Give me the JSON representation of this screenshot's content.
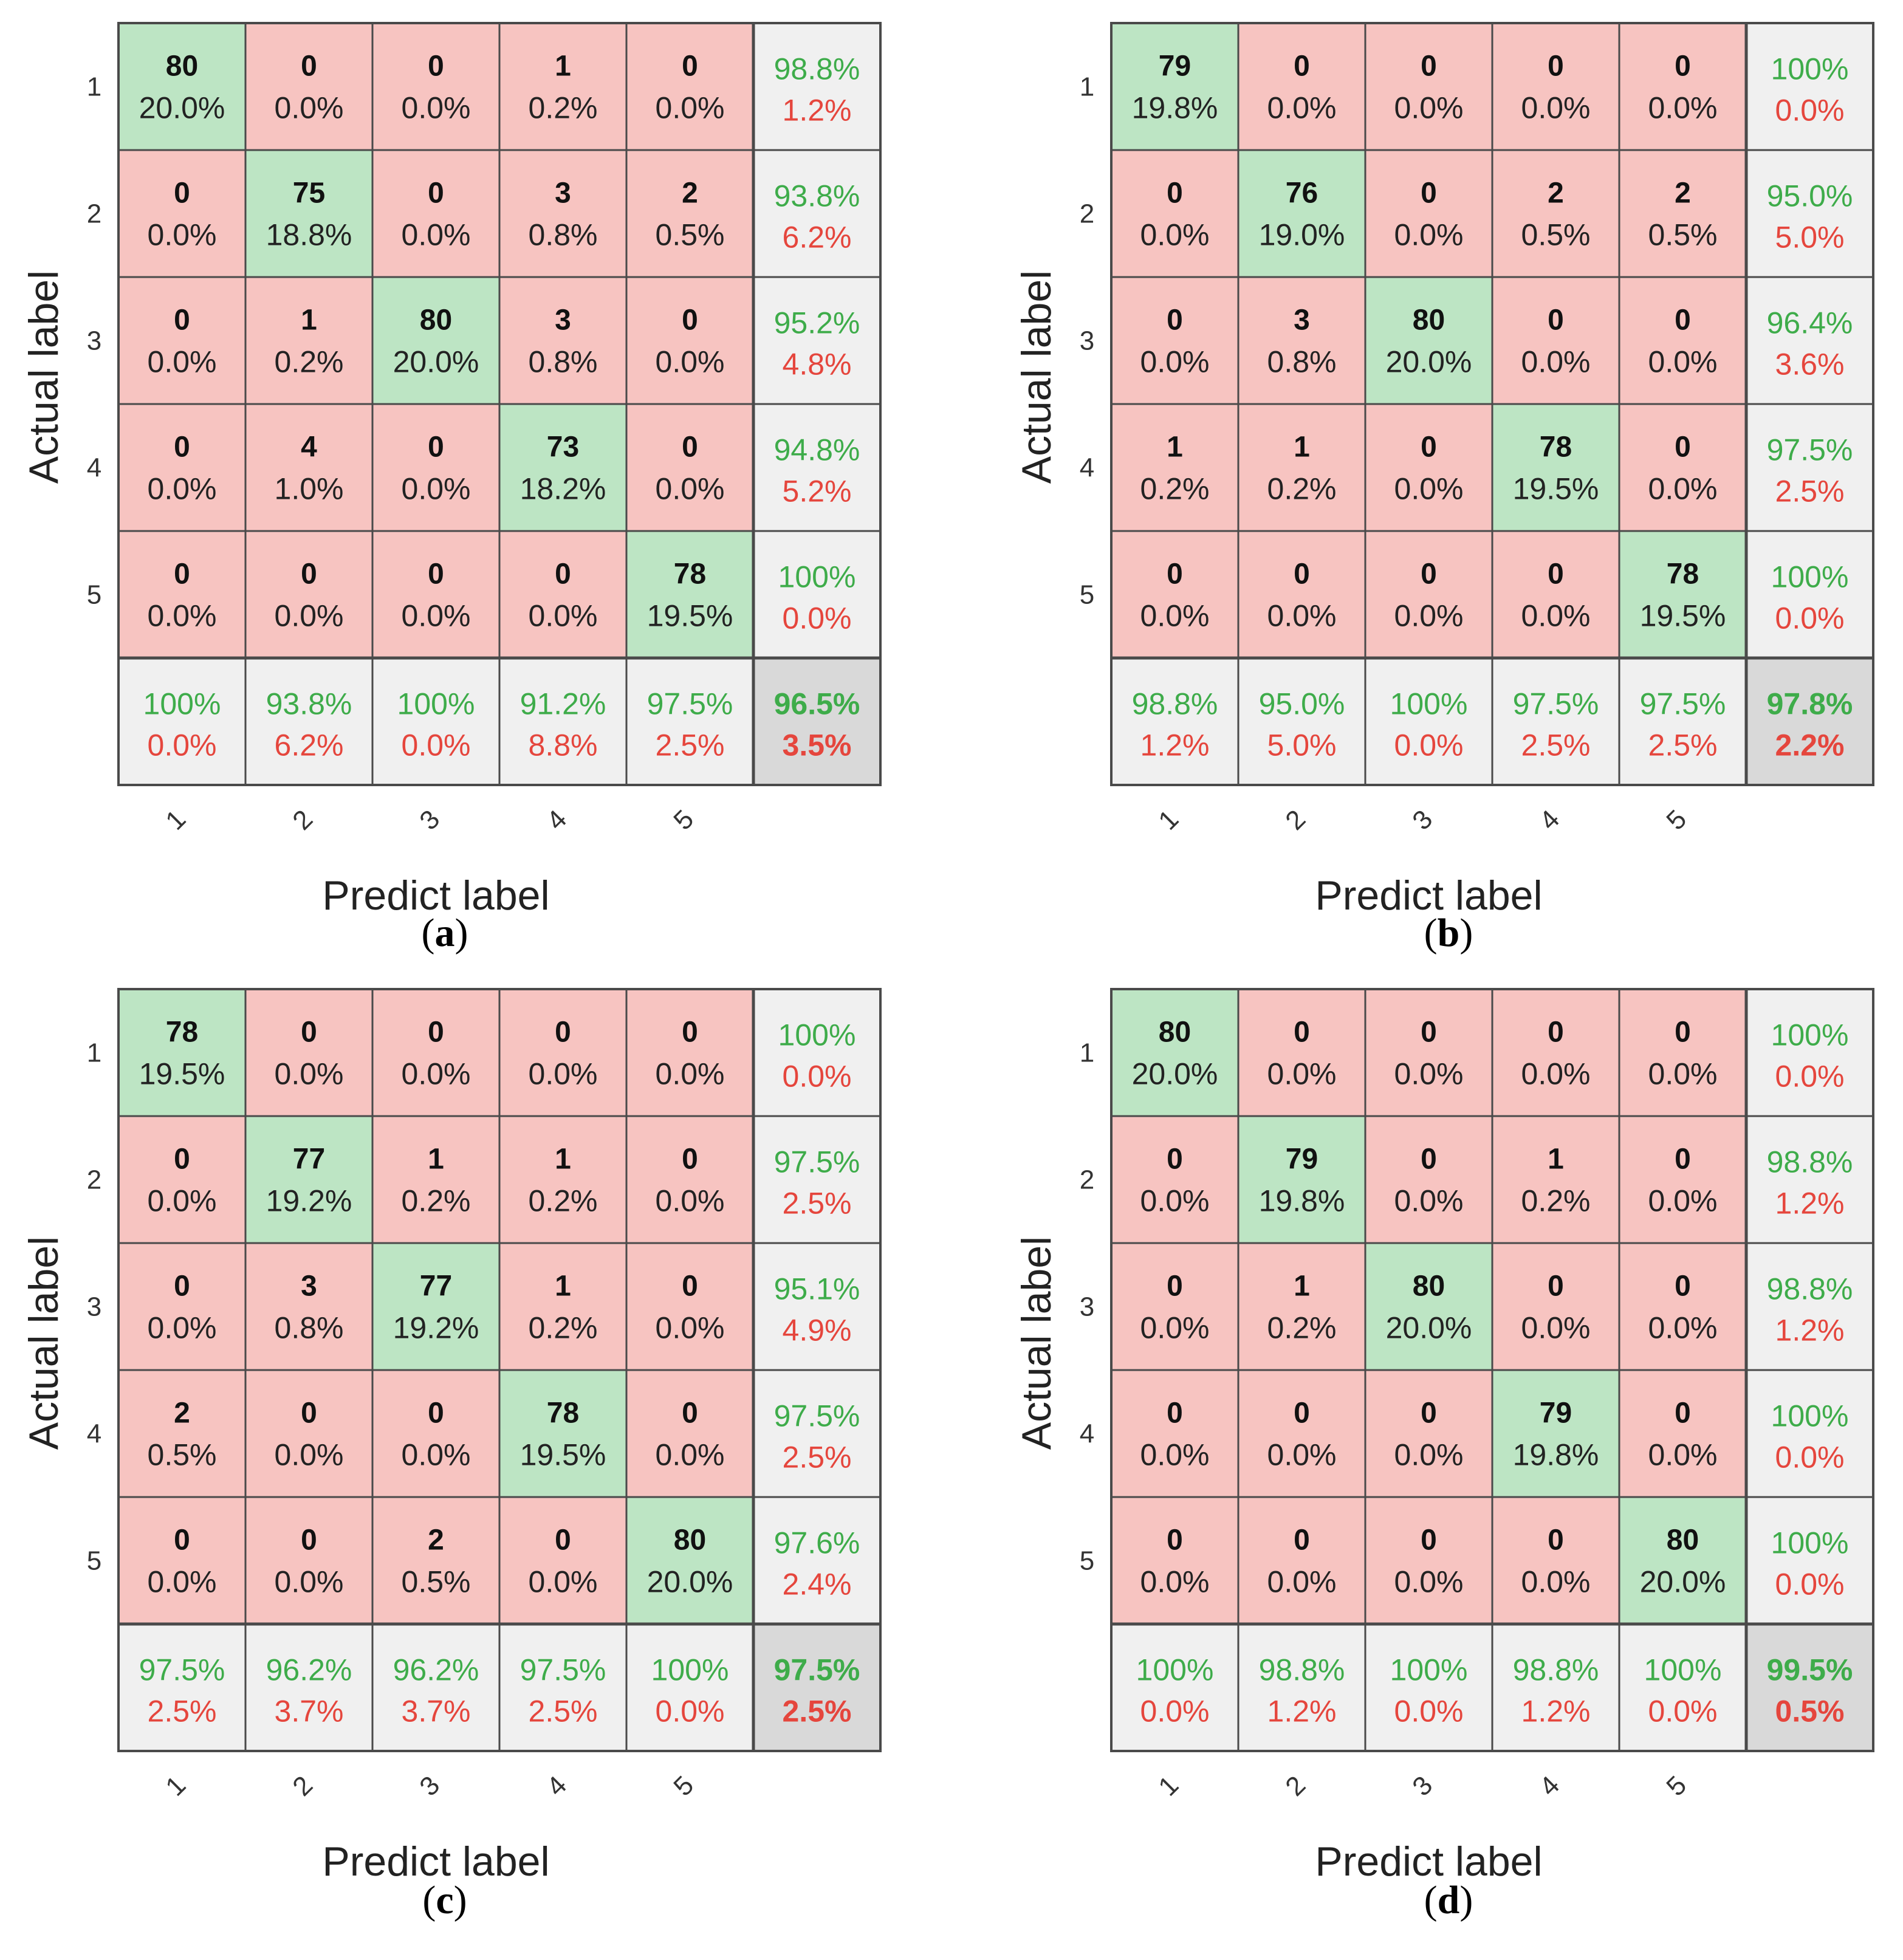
{
  "chart_data": [
    {
      "type": "confusion_matrix",
      "panel": "a",
      "classes": [
        "1",
        "2",
        "3",
        "4",
        "5"
      ],
      "xlabel": "Predict label",
      "ylabel": "Actual label",
      "matrix": [
        [
          {
            "count": "80",
            "pct": "20.0%"
          },
          {
            "count": "0",
            "pct": "0.0%"
          },
          {
            "count": "0",
            "pct": "0.0%"
          },
          {
            "count": "1",
            "pct": "0.2%"
          },
          {
            "count": "0",
            "pct": "0.0%"
          }
        ],
        [
          {
            "count": "0",
            "pct": "0.0%"
          },
          {
            "count": "75",
            "pct": "18.8%"
          },
          {
            "count": "0",
            "pct": "0.0%"
          },
          {
            "count": "3",
            "pct": "0.8%"
          },
          {
            "count": "2",
            "pct": "0.5%"
          }
        ],
        [
          {
            "count": "0",
            "pct": "0.0%"
          },
          {
            "count": "1",
            "pct": "0.2%"
          },
          {
            "count": "80",
            "pct": "20.0%"
          },
          {
            "count": "3",
            "pct": "0.8%"
          },
          {
            "count": "0",
            "pct": "0.0%"
          }
        ],
        [
          {
            "count": "0",
            "pct": "0.0%"
          },
          {
            "count": "4",
            "pct": "1.0%"
          },
          {
            "count": "0",
            "pct": "0.0%"
          },
          {
            "count": "73",
            "pct": "18.2%"
          },
          {
            "count": "0",
            "pct": "0.0%"
          }
        ],
        [
          {
            "count": "0",
            "pct": "0.0%"
          },
          {
            "count": "0",
            "pct": "0.0%"
          },
          {
            "count": "0",
            "pct": "0.0%"
          },
          {
            "count": "0",
            "pct": "0.0%"
          },
          {
            "count": "78",
            "pct": "19.5%"
          }
        ]
      ],
      "row_summary": [
        {
          "correct": "98.8%",
          "error": "1.2%"
        },
        {
          "correct": "93.8%",
          "error": "6.2%"
        },
        {
          "correct": "95.2%",
          "error": "4.8%"
        },
        {
          "correct": "94.8%",
          "error": "5.2%"
        },
        {
          "correct": "100%",
          "error": "0.0%"
        }
      ],
      "col_summary": [
        {
          "correct": "100%",
          "error": "0.0%"
        },
        {
          "correct": "93.8%",
          "error": "6.2%"
        },
        {
          "correct": "100%",
          "error": "0.0%"
        },
        {
          "correct": "91.2%",
          "error": "8.8%"
        },
        {
          "correct": "97.5%",
          "error": "2.5%"
        }
      ],
      "overall": {
        "correct": "96.5%",
        "error": "3.5%"
      },
      "caption": {
        "open": "(",
        "letter": "a",
        "close": ")"
      }
    },
    {
      "type": "confusion_matrix",
      "panel": "b",
      "classes": [
        "1",
        "2",
        "3",
        "4",
        "5"
      ],
      "xlabel": "Predict label",
      "ylabel": "Actual label",
      "matrix": [
        [
          {
            "count": "79",
            "pct": "19.8%"
          },
          {
            "count": "0",
            "pct": "0.0%"
          },
          {
            "count": "0",
            "pct": "0.0%"
          },
          {
            "count": "0",
            "pct": "0.0%"
          },
          {
            "count": "0",
            "pct": "0.0%"
          }
        ],
        [
          {
            "count": "0",
            "pct": "0.0%"
          },
          {
            "count": "76",
            "pct": "19.0%"
          },
          {
            "count": "0",
            "pct": "0.0%"
          },
          {
            "count": "2",
            "pct": "0.5%"
          },
          {
            "count": "2",
            "pct": "0.5%"
          }
        ],
        [
          {
            "count": "0",
            "pct": "0.0%"
          },
          {
            "count": "3",
            "pct": "0.8%"
          },
          {
            "count": "80",
            "pct": "20.0%"
          },
          {
            "count": "0",
            "pct": "0.0%"
          },
          {
            "count": "0",
            "pct": "0.0%"
          }
        ],
        [
          {
            "count": "1",
            "pct": "0.2%"
          },
          {
            "count": "1",
            "pct": "0.2%"
          },
          {
            "count": "0",
            "pct": "0.0%"
          },
          {
            "count": "78",
            "pct": "19.5%"
          },
          {
            "count": "0",
            "pct": "0.0%"
          }
        ],
        [
          {
            "count": "0",
            "pct": "0.0%"
          },
          {
            "count": "0",
            "pct": "0.0%"
          },
          {
            "count": "0",
            "pct": "0.0%"
          },
          {
            "count": "0",
            "pct": "0.0%"
          },
          {
            "count": "78",
            "pct": "19.5%"
          }
        ]
      ],
      "row_summary": [
        {
          "correct": "100%",
          "error": "0.0%"
        },
        {
          "correct": "95.0%",
          "error": "5.0%"
        },
        {
          "correct": "96.4%",
          "error": "3.6%"
        },
        {
          "correct": "97.5%",
          "error": "2.5%"
        },
        {
          "correct": "100%",
          "error": "0.0%"
        }
      ],
      "col_summary": [
        {
          "correct": "98.8%",
          "error": "1.2%"
        },
        {
          "correct": "95.0%",
          "error": "5.0%"
        },
        {
          "correct": "100%",
          "error": "0.0%"
        },
        {
          "correct": "97.5%",
          "error": "2.5%"
        },
        {
          "correct": "97.5%",
          "error": "2.5%"
        }
      ],
      "overall": {
        "correct": "97.8%",
        "error": "2.2%"
      },
      "caption": {
        "open": "(",
        "letter": "b",
        "close": ")"
      }
    },
    {
      "type": "confusion_matrix",
      "panel": "c",
      "classes": [
        "1",
        "2",
        "3",
        "4",
        "5"
      ],
      "xlabel": "Predict label",
      "ylabel": "Actual label",
      "matrix": [
        [
          {
            "count": "78",
            "pct": "19.5%"
          },
          {
            "count": "0",
            "pct": "0.0%"
          },
          {
            "count": "0",
            "pct": "0.0%"
          },
          {
            "count": "0",
            "pct": "0.0%"
          },
          {
            "count": "0",
            "pct": "0.0%"
          }
        ],
        [
          {
            "count": "0",
            "pct": "0.0%"
          },
          {
            "count": "77",
            "pct": "19.2%"
          },
          {
            "count": "1",
            "pct": "0.2%"
          },
          {
            "count": "1",
            "pct": "0.2%"
          },
          {
            "count": "0",
            "pct": "0.0%"
          }
        ],
        [
          {
            "count": "0",
            "pct": "0.0%"
          },
          {
            "count": "3",
            "pct": "0.8%"
          },
          {
            "count": "77",
            "pct": "19.2%"
          },
          {
            "count": "1",
            "pct": "0.2%"
          },
          {
            "count": "0",
            "pct": "0.0%"
          }
        ],
        [
          {
            "count": "2",
            "pct": "0.5%"
          },
          {
            "count": "0",
            "pct": "0.0%"
          },
          {
            "count": "0",
            "pct": "0.0%"
          },
          {
            "count": "78",
            "pct": "19.5%"
          },
          {
            "count": "0",
            "pct": "0.0%"
          }
        ],
        [
          {
            "count": "0",
            "pct": "0.0%"
          },
          {
            "count": "0",
            "pct": "0.0%"
          },
          {
            "count": "2",
            "pct": "0.5%"
          },
          {
            "count": "0",
            "pct": "0.0%"
          },
          {
            "count": "80",
            "pct": "20.0%"
          }
        ]
      ],
      "row_summary": [
        {
          "correct": "100%",
          "error": "0.0%"
        },
        {
          "correct": "97.5%",
          "error": "2.5%"
        },
        {
          "correct": "95.1%",
          "error": "4.9%"
        },
        {
          "correct": "97.5%",
          "error": "2.5%"
        },
        {
          "correct": "97.6%",
          "error": "2.4%"
        }
      ],
      "col_summary": [
        {
          "correct": "97.5%",
          "error": "2.5%"
        },
        {
          "correct": "96.2%",
          "error": "3.7%"
        },
        {
          "correct": "96.2%",
          "error": "3.7%"
        },
        {
          "correct": "97.5%",
          "error": "2.5%"
        },
        {
          "correct": "100%",
          "error": "0.0%"
        }
      ],
      "overall": {
        "correct": "97.5%",
        "error": "2.5%"
      },
      "caption": {
        "open": "(",
        "letter": "c",
        "close": ")"
      }
    },
    {
      "type": "confusion_matrix",
      "panel": "d",
      "classes": [
        "1",
        "2",
        "3",
        "4",
        "5"
      ],
      "xlabel": "Predict label",
      "ylabel": "Actual label",
      "matrix": [
        [
          {
            "count": "80",
            "pct": "20.0%"
          },
          {
            "count": "0",
            "pct": "0.0%"
          },
          {
            "count": "0",
            "pct": "0.0%"
          },
          {
            "count": "0",
            "pct": "0.0%"
          },
          {
            "count": "0",
            "pct": "0.0%"
          }
        ],
        [
          {
            "count": "0",
            "pct": "0.0%"
          },
          {
            "count": "79",
            "pct": "19.8%"
          },
          {
            "count": "0",
            "pct": "0.0%"
          },
          {
            "count": "1",
            "pct": "0.2%"
          },
          {
            "count": "0",
            "pct": "0.0%"
          }
        ],
        [
          {
            "count": "0",
            "pct": "0.0%"
          },
          {
            "count": "1",
            "pct": "0.2%"
          },
          {
            "count": "80",
            "pct": "20.0%"
          },
          {
            "count": "0",
            "pct": "0.0%"
          },
          {
            "count": "0",
            "pct": "0.0%"
          }
        ],
        [
          {
            "count": "0",
            "pct": "0.0%"
          },
          {
            "count": "0",
            "pct": "0.0%"
          },
          {
            "count": "0",
            "pct": "0.0%"
          },
          {
            "count": "79",
            "pct": "19.8%"
          },
          {
            "count": "0",
            "pct": "0.0%"
          }
        ],
        [
          {
            "count": "0",
            "pct": "0.0%"
          },
          {
            "count": "0",
            "pct": "0.0%"
          },
          {
            "count": "0",
            "pct": "0.0%"
          },
          {
            "count": "0",
            "pct": "0.0%"
          },
          {
            "count": "80",
            "pct": "20.0%"
          }
        ]
      ],
      "row_summary": [
        {
          "correct": "100%",
          "error": "0.0%"
        },
        {
          "correct": "98.8%",
          "error": "1.2%"
        },
        {
          "correct": "98.8%",
          "error": "1.2%"
        },
        {
          "correct": "100%",
          "error": "0.0%"
        },
        {
          "correct": "100%",
          "error": "0.0%"
        }
      ],
      "col_summary": [
        {
          "correct": "100%",
          "error": "0.0%"
        },
        {
          "correct": "98.8%",
          "error": "1.2%"
        },
        {
          "correct": "100%",
          "error": "0.0%"
        },
        {
          "correct": "98.8%",
          "error": "1.2%"
        },
        {
          "correct": "100%",
          "error": "0.0%"
        }
      ],
      "overall": {
        "correct": "99.5%",
        "error": "0.5%"
      },
      "caption": {
        "open": "(",
        "letter": "d",
        "close": ")"
      }
    }
  ],
  "colors": {
    "diagonal": "#bde5c4",
    "off_diagonal": "#f7c4c1",
    "summary": "#f0f0f0",
    "overall": "#d9d9d9",
    "correct_text": "#3eac4a",
    "error_text": "#e5463d",
    "grid_line": "#4a4a4a"
  }
}
